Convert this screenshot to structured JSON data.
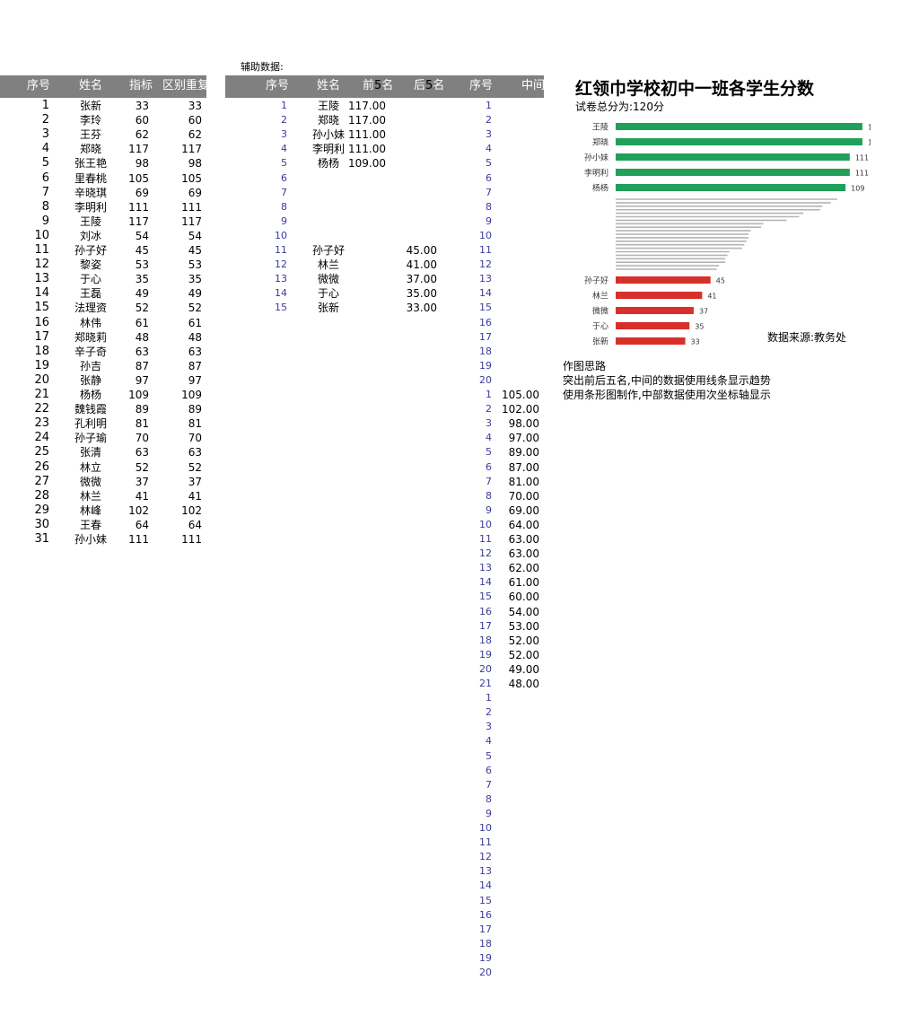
{
  "aux_label": "辅助数据:",
  "main_table": {
    "headers": [
      "序号",
      "姓名",
      "指标",
      "区别重复"
    ],
    "rows": [
      [
        "1",
        "张新",
        "33",
        "33"
      ],
      [
        "2",
        "李玲",
        "60",
        "60"
      ],
      [
        "3",
        "王芬",
        "62",
        "62"
      ],
      [
        "4",
        "郑晓",
        "117",
        "117"
      ],
      [
        "5",
        "张王艳",
        "98",
        "98"
      ],
      [
        "6",
        "里春桃",
        "105",
        "105"
      ],
      [
        "7",
        "辛晓琪",
        "69",
        "69"
      ],
      [
        "8",
        "李明利",
        "111",
        "111"
      ],
      [
        "9",
        "王陵",
        "117",
        "117"
      ],
      [
        "10",
        "刘冰",
        "54",
        "54"
      ],
      [
        "11",
        "孙子好",
        "45",
        "45"
      ],
      [
        "12",
        "黎姿",
        "53",
        "53"
      ],
      [
        "13",
        "于心",
        "35",
        "35"
      ],
      [
        "14",
        "王磊",
        "49",
        "49"
      ],
      [
        "15",
        "法理资",
        "52",
        "52"
      ],
      [
        "16",
        "林伟",
        "61",
        "61"
      ],
      [
        "17",
        "郑晓莉",
        "48",
        "48"
      ],
      [
        "18",
        "辛子奇",
        "63",
        "63"
      ],
      [
        "19",
        "孙吉",
        "87",
        "87"
      ],
      [
        "20",
        "张静",
        "97",
        "97"
      ],
      [
        "21",
        "杨杨",
        "109",
        "109"
      ],
      [
        "22",
        "魏钱霞",
        "89",
        "89"
      ],
      [
        "23",
        "孔利明",
        "81",
        "81"
      ],
      [
        "24",
        "孙子瑜",
        "70",
        "70"
      ],
      [
        "25",
        "张清",
        "63",
        "63"
      ],
      [
        "26",
        "林立",
        "52",
        "52"
      ],
      [
        "27",
        "微微",
        "37",
        "37"
      ],
      [
        "28",
        "林兰",
        "41",
        "41"
      ],
      [
        "29",
        "林峰",
        "102",
        "102"
      ],
      [
        "30",
        "王春",
        "64",
        "64"
      ],
      [
        "31",
        "孙小妹",
        "111",
        "111"
      ]
    ]
  },
  "aux_table": {
    "headers": {
      "seq": "序号",
      "name": "姓名",
      "top_prefix": "前",
      "top_digit": "5",
      "top_suffix": "名",
      "bottom_prefix": "后",
      "bottom_digit": "5",
      "bottom_suffix": "名",
      "seq2": "序号",
      "middle": "中间"
    },
    "rows": [
      {
        "seq": "1",
        "name": "王陵",
        "top": "117.00",
        "bottom": ""
      },
      {
        "seq": "2",
        "name": "郑晓",
        "top": "117.00",
        "bottom": ""
      },
      {
        "seq": "3",
        "name": "孙小妹",
        "top": "111.00",
        "bottom": ""
      },
      {
        "seq": "4",
        "name": "李明利",
        "top": "111.00",
        "bottom": ""
      },
      {
        "seq": "5",
        "name": "杨杨",
        "top": "109.00",
        "bottom": ""
      },
      {
        "seq": "6",
        "name": "",
        "top": "",
        "bottom": ""
      },
      {
        "seq": "7",
        "name": "",
        "top": "",
        "bottom": ""
      },
      {
        "seq": "8",
        "name": "",
        "top": "",
        "bottom": ""
      },
      {
        "seq": "9",
        "name": "",
        "top": "",
        "bottom": ""
      },
      {
        "seq": "10",
        "name": "",
        "top": "",
        "bottom": ""
      },
      {
        "seq": "11",
        "name": "孙子好",
        "top": "",
        "bottom": "45.00"
      },
      {
        "seq": "12",
        "name": "林兰",
        "top": "",
        "bottom": "41.00"
      },
      {
        "seq": "13",
        "name": "微微",
        "top": "",
        "bottom": "37.00"
      },
      {
        "seq": "14",
        "name": "于心",
        "top": "",
        "bottom": "35.00"
      },
      {
        "seq": "15",
        "name": "张新",
        "top": "",
        "bottom": "33.00"
      }
    ],
    "seq2_col": [
      "1",
      "2",
      "3",
      "4",
      "5",
      "6",
      "7",
      "8",
      "9",
      "10",
      "11",
      "12",
      "13",
      "14",
      "15",
      "16",
      "17",
      "18",
      "19",
      "20",
      "1",
      "2",
      "3",
      "4",
      "5",
      "6",
      "7",
      "8",
      "9",
      "10",
      "11",
      "12",
      "13",
      "14",
      "15",
      "16",
      "17",
      "18",
      "19",
      "20",
      "21",
      "1",
      "2",
      "3",
      "4",
      "5",
      "6",
      "7",
      "8",
      "9",
      "10",
      "11",
      "12",
      "13",
      "14",
      "15",
      "16",
      "17",
      "18",
      "19",
      "20"
    ],
    "middle_col": [
      "",
      "",
      "",
      "",
      "",
      "",
      "",
      "",
      "",
      "",
      "",
      "",
      "",
      "",
      "",
      "",
      "",
      "",
      "",
      "",
      "105.00",
      "102.00",
      "98.00",
      "97.00",
      "89.00",
      "87.00",
      "81.00",
      "70.00",
      "69.00",
      "64.00",
      "63.00",
      "63.00",
      "62.00",
      "61.00",
      "60.00",
      "54.00",
      "53.00",
      "52.00",
      "52.00",
      "49.00",
      "48.00",
      "",
      "",
      "",
      "",
      "",
      "",
      "",
      "",
      "",
      "",
      "",
      "",
      "",
      "",
      "",
      "",
      "",
      "",
      "",
      ""
    ]
  },
  "chart_title": "红领巾学校初中一班各学生分数",
  "chart_subtitle": "试卷总分为:120分",
  "source": "数据来源:教务处",
  "notes": {
    "heading": "作图思路",
    "line1": "突出前后五名,中间的数据使用线条显示趋势",
    "line2": "使用条形图制作,中部数据使用次坐标轴显示"
  },
  "colors": {
    "top": "#21a05a",
    "bottom": "#d7302b",
    "middle": "#b4b4b4",
    "header_bg": "#808080"
  },
  "chart_data": {
    "type": "bar",
    "orientation": "horizontal",
    "title": "红领巾学校初中一班各学生分数",
    "subtitle": "试卷总分为:120分",
    "xlim": [
      0,
      120
    ],
    "grid": false,
    "legend": "none",
    "series": [
      {
        "categories": [
          "王陵",
          "郑晓",
          "孙小妹",
          "李明利",
          "杨杨"
        ],
        "values": [
          117,
          117,
          111,
          111,
          109
        ]
      },
      {
        "categories": [],
        "values": [
          105,
          102,
          98,
          97,
          89,
          87,
          81,
          70,
          69,
          64,
          63,
          63,
          62,
          61,
          60,
          54,
          53,
          52,
          52,
          49,
          48
        ]
      },
      {
        "categories": [
          "孙子好",
          "林兰",
          "微微",
          "于心",
          "张新"
        ],
        "values": [
          45,
          41,
          37,
          35,
          33
        ]
      }
    ]
  }
}
